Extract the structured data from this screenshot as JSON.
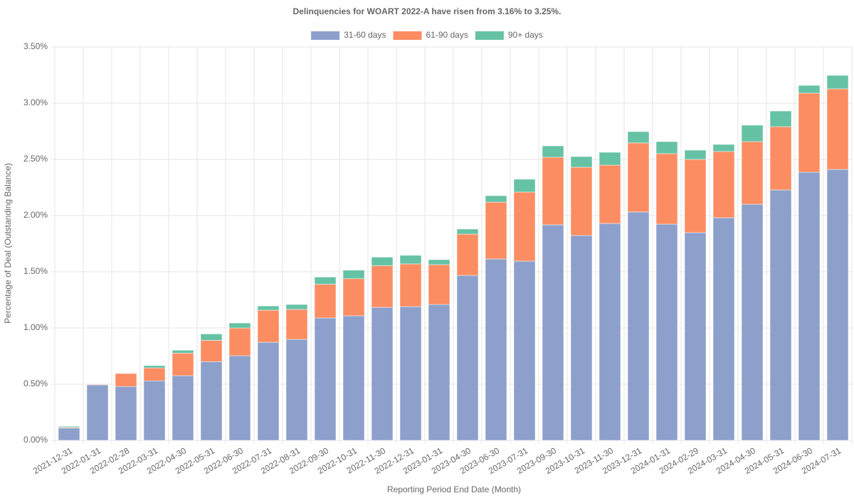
{
  "chart_data": {
    "type": "stacked_bar",
    "title": "Delinquencies for WOART 2022-A have risen from 3.16% to 3.25%.",
    "x_label": "Reporting Period End Date (Month)",
    "y_label": "Percentage of Deal (Outstanding Balance)",
    "categories": [
      "2021-12-31",
      "2022-01-31",
      "2022-02-28",
      "2022-03-31",
      "2022-04-30",
      "2022-05-31",
      "2022-06-30",
      "2022-07-31",
      "2022-08-31",
      "2022-09-30",
      "2022-10-31",
      "2022-11-30",
      "2022-12-31",
      "2023-01-31",
      "2023-04-30",
      "2023-06-30",
      "2023-07-31",
      "2023-09-30",
      "2023-10-31",
      "2023-11-30",
      "2023-12-31",
      "2024-01-31",
      "2024-02-29",
      "2024-03-31",
      "2024-04-30",
      "2024-05-31",
      "2024-06-30",
      "2024-07-31"
    ],
    "series": [
      {
        "name": "31-60 days",
        "color": "#8da0cb",
        "values": [
          0.11,
          0.494,
          0.48,
          0.53,
          0.576,
          0.7,
          0.753,
          0.873,
          0.899,
          1.089,
          1.108,
          1.184,
          1.19,
          1.209,
          1.468,
          1.614,
          1.595,
          1.918,
          1.823,
          1.93,
          2.032,
          1.924,
          1.848,
          1.981,
          2.101,
          2.228,
          2.386,
          2.411
        ]
      },
      {
        "name": "61-90 days",
        "color": "#fc8d62",
        "values": [
          0.005,
          0.005,
          0.115,
          0.115,
          0.2,
          0.19,
          0.247,
          0.285,
          0.266,
          0.3,
          0.33,
          0.37,
          0.38,
          0.354,
          0.367,
          0.506,
          0.614,
          0.601,
          0.607,
          0.519,
          0.614,
          0.627,
          0.652,
          0.589,
          0.557,
          0.563,
          0.703,
          0.716
        ]
      },
      {
        "name": "90+ days",
        "color": "#66c2a5",
        "values": [
          0.01,
          0,
          0,
          0.02,
          0.026,
          0.057,
          0.044,
          0.038,
          0.044,
          0.064,
          0.076,
          0.076,
          0.076,
          0.045,
          0.045,
          0.057,
          0.114,
          0.101,
          0.095,
          0.114,
          0.101,
          0.107,
          0.082,
          0.063,
          0.146,
          0.139,
          0.069,
          0.12
        ]
      }
    ],
    "ylim": [
      0,
      3.5
    ],
    "yticks": [
      {
        "value": 0,
        "label": "0.00%"
      },
      {
        "value": 0.5,
        "label": "0.50%"
      },
      {
        "value": 1,
        "label": "1.00%"
      },
      {
        "value": 1.5,
        "label": "1.50%"
      },
      {
        "value": 2,
        "label": "2.00%"
      },
      {
        "value": 2.5,
        "label": "2.50%"
      },
      {
        "value": 3,
        "label": "3.00%"
      },
      {
        "value": 3.5,
        "label": "3.50%"
      }
    ],
    "grid": true,
    "legend": "top"
  }
}
